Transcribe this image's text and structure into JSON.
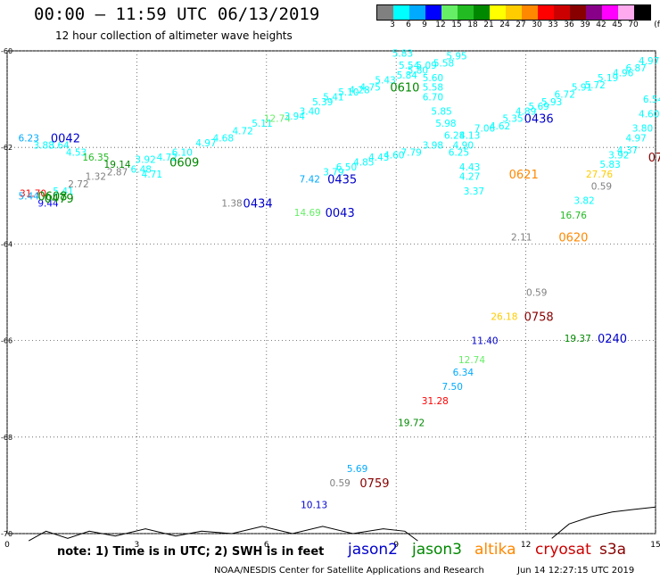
{
  "header": {
    "title": "00:00 – 11:59 UTC 06/13/2019",
    "subtitle": "12 hour collection of altimeter wave heights"
  },
  "scale": {
    "unit": "(ft)",
    "stops": [
      {
        "label": "3",
        "color": "#808080"
      },
      {
        "label": "6",
        "color": "#00ffff"
      },
      {
        "label": "9",
        "color": "#00aaff"
      },
      {
        "label": "12",
        "color": "#0000ff"
      },
      {
        "label": "15",
        "color": "#66ee66"
      },
      {
        "label": "18",
        "color": "#22bb22"
      },
      {
        "label": "21",
        "color": "#008800"
      },
      {
        "label": "24",
        "color": "#ffff00"
      },
      {
        "label": "27",
        "color": "#ffcc00"
      },
      {
        "label": "30",
        "color": "#ff8800"
      },
      {
        "label": "33",
        "color": "#ff0000"
      },
      {
        "label": "36",
        "color": "#cc0000"
      },
      {
        "label": "39",
        "color": "#880000"
      },
      {
        "label": "42",
        "color": "#880088"
      },
      {
        "label": "45",
        "color": "#ff00ff"
      },
      {
        "label": "70",
        "color": "#ffaaee"
      },
      {
        "label": "",
        "color": "#000000"
      }
    ]
  },
  "footer": {
    "note": "note: 1) Time is in UTC; 2) SWH is in feet",
    "credit": "NOAA/NESDIS Center for Satellite Applications and Research",
    "generated": "Jun 14 12:27:15 UTC 2019"
  },
  "legend": [
    {
      "label": "jason2",
      "color": "#0000cc"
    },
    {
      "label": "jason3",
      "color": "#008800"
    },
    {
      "label": "altika",
      "color": "#ff8800"
    },
    {
      "label": "cryosat",
      "color": "#cc0000"
    },
    {
      "label": "s3a",
      "color": "#880000"
    }
  ],
  "chart_data": {
    "type": "scatter",
    "title": "00:00 – 11:59 UTC 06/13/2019",
    "subtitle": "12 hour collection of altimeter wave heights",
    "xlabel": "",
    "ylabel": "",
    "xlim": [
      0,
      15
    ],
    "ylim": [
      -70,
      -60
    ],
    "x_ticks": [
      "0",
      "3",
      "6",
      "9",
      "12",
      "15"
    ],
    "x_tick_values": [
      0,
      3,
      6,
      9,
      12,
      15
    ],
    "y_ticks": [
      "-60",
      "-62",
      "-64",
      "-66",
      "-68",
      "-70"
    ],
    "y_tick_values": [
      -60,
      -62,
      -64,
      -66,
      -68,
      -70
    ],
    "grid": true,
    "points": [
      {
        "x": 0.5,
        "y": -61.8,
        "text": "6.23",
        "color": "#00aaff"
      },
      {
        "x": 0.85,
        "y": -61.95,
        "text": "3.88",
        "color": "#00ffff"
      },
      {
        "x": 1.2,
        "y": -61.95,
        "text": "3.64",
        "color": "#00ffff"
      },
      {
        "x": 1.6,
        "y": -62.1,
        "text": "4.53",
        "color": "#00ffff"
      },
      {
        "x": 2.05,
        "y": -62.2,
        "text": "16.35",
        "color": "#22bb22"
      },
      {
        "x": 2.55,
        "y": -62.35,
        "text": "19.14",
        "color": "#008800"
      },
      {
        "x": 3.1,
        "y": -62.45,
        "text": "6.48",
        "color": "#00ffff"
      },
      {
        "x": 3.35,
        "y": -62.55,
        "text": "4.71",
        "color": "#00ffff"
      },
      {
        "x": 3.2,
        "y": -62.25,
        "text": "3.92",
        "color": "#00ffff"
      },
      {
        "x": 3.7,
        "y": -62.2,
        "text": "4.72",
        "color": "#00ffff"
      },
      {
        "x": 4.05,
        "y": -62.1,
        "text": "6.10",
        "color": "#00ffff"
      },
      {
        "x": 4.6,
        "y": -61.9,
        "text": "4.97",
        "color": "#00ffff"
      },
      {
        "x": 5.0,
        "y": -61.8,
        "text": "4.68",
        "color": "#00ffff"
      },
      {
        "x": 5.45,
        "y": -61.65,
        "text": "4.72",
        "color": "#00ffff"
      },
      {
        "x": 5.9,
        "y": -61.5,
        "text": "5.11",
        "color": "#00ffff"
      },
      {
        "x": 6.25,
        "y": -61.4,
        "text": "12.74",
        "color": "#66ee66"
      },
      {
        "x": 6.65,
        "y": -61.35,
        "text": "3.94",
        "color": "#00ffff"
      },
      {
        "x": 7.0,
        "y": -61.25,
        "text": "3.40",
        "color": "#00ffff"
      },
      {
        "x": 7.3,
        "y": -61.05,
        "text": "5.39",
        "color": "#00ffff"
      },
      {
        "x": 7.55,
        "y": -60.95,
        "text": "5.41",
        "color": "#00ffff"
      },
      {
        "x": 7.9,
        "y": -60.85,
        "text": "5.10",
        "color": "#00ffff"
      },
      {
        "x": 8.15,
        "y": -60.8,
        "text": "4.28",
        "color": "#00ffff"
      },
      {
        "x": 8.4,
        "y": -60.75,
        "text": "4.75",
        "color": "#00ffff"
      },
      {
        "x": 8.75,
        "y": -60.6,
        "text": "5.43",
        "color": "#00ffff"
      },
      {
        "x": 9.15,
        "y": -60.05,
        "text": "5.83",
        "color": "#00ffff"
      },
      {
        "x": 9.3,
        "y": -60.3,
        "text": "5.54",
        "color": "#00ffff"
      },
      {
        "x": 9.25,
        "y": -60.5,
        "text": "5.84",
        "color": "#00ffff"
      },
      {
        "x": 9.5,
        "y": -60.4,
        "text": "5.80",
        "color": "#00ffff"
      },
      {
        "x": 9.7,
        "y": -60.3,
        "text": "5.09",
        "color": "#00ffff"
      },
      {
        "x": 9.85,
        "y": -60.55,
        "text": "5.60",
        "color": "#00ffff"
      },
      {
        "x": 10.1,
        "y": -60.25,
        "text": "5.58",
        "color": "#00ffff"
      },
      {
        "x": 10.4,
        "y": -60.1,
        "text": "5.95",
        "color": "#00ffff"
      },
      {
        "x": 9.85,
        "y": -60.75,
        "text": "5.58",
        "color": "#00ffff"
      },
      {
        "x": 9.85,
        "y": -60.95,
        "text": "6.70",
        "color": "#00ffff"
      },
      {
        "x": 10.05,
        "y": -61.25,
        "text": "5.85",
        "color": "#00ffff"
      },
      {
        "x": 10.15,
        "y": -61.5,
        "text": "5.98",
        "color": "#00ffff"
      },
      {
        "x": 10.35,
        "y": -61.75,
        "text": "6.28",
        "color": "#00ffff"
      },
      {
        "x": 10.55,
        "y": -61.95,
        "text": "4.90",
        "color": "#00ffff"
      },
      {
        "x": 10.7,
        "y": -61.75,
        "text": "4.13",
        "color": "#00ffff"
      },
      {
        "x": 11.05,
        "y": -61.6,
        "text": "7.06",
        "color": "#00ffff"
      },
      {
        "x": 11.4,
        "y": -61.55,
        "text": "4.62",
        "color": "#00ffff"
      },
      {
        "x": 11.7,
        "y": -61.4,
        "text": "5.35",
        "color": "#00ffff"
      },
      {
        "x": 12.0,
        "y": -61.25,
        "text": "4.89",
        "color": "#00ffff"
      },
      {
        "x": 12.3,
        "y": -61.15,
        "text": "5.69",
        "color": "#00ffff"
      },
      {
        "x": 12.6,
        "y": -61.05,
        "text": "5.93",
        "color": "#00ffff"
      },
      {
        "x": 12.9,
        "y": -60.9,
        "text": "6.72",
        "color": "#00ffff"
      },
      {
        "x": 13.3,
        "y": -60.75,
        "text": "5.91",
        "color": "#00ffff"
      },
      {
        "x": 13.6,
        "y": -60.7,
        "text": "5.72",
        "color": "#00ffff"
      },
      {
        "x": 13.9,
        "y": -60.55,
        "text": "5.19",
        "color": "#00ffff"
      },
      {
        "x": 14.25,
        "y": -60.45,
        "text": "4.96",
        "color": "#00ffff"
      },
      {
        "x": 14.55,
        "y": -60.35,
        "text": "6.87",
        "color": "#00ffff"
      },
      {
        "x": 14.85,
        "y": -60.2,
        "text": "4.97",
        "color": "#00ffff"
      },
      {
        "x": 10.45,
        "y": -62.1,
        "text": "6.25",
        "color": "#00ffff"
      },
      {
        "x": 10.7,
        "y": -62.4,
        "text": "4.43",
        "color": "#00ffff"
      },
      {
        "x": 10.7,
        "y": -62.6,
        "text": "4.27",
        "color": "#00ffff"
      },
      {
        "x": 10.8,
        "y": -62.9,
        "text": "3.37",
        "color": "#00ffff"
      },
      {
        "x": 9.85,
        "y": -61.95,
        "text": "3.98",
        "color": "#00ffff"
      },
      {
        "x": 9.35,
        "y": -62.1,
        "text": "7.79",
        "color": "#00ffff"
      },
      {
        "x": 8.95,
        "y": -62.15,
        "text": "4.60",
        "color": "#00ffff"
      },
      {
        "x": 8.6,
        "y": -62.2,
        "text": "4.43",
        "color": "#00ffff"
      },
      {
        "x": 8.25,
        "y": -62.3,
        "text": "4.85",
        "color": "#00ffff"
      },
      {
        "x": 7.85,
        "y": -62.4,
        "text": "6.50",
        "color": "#00ffff"
      },
      {
        "x": 7.55,
        "y": -62.5,
        "text": "3.79",
        "color": "#00ffff"
      },
      {
        "x": 7.0,
        "y": -62.65,
        "text": "7.42",
        "color": "#00aaff"
      },
      {
        "x": 14.95,
        "y": -61.0,
        "text": "6.54",
        "color": "#00ffff"
      },
      {
        "x": 14.85,
        "y": -61.3,
        "text": "4.60",
        "color": "#00ffff"
      },
      {
        "x": 14.7,
        "y": -61.6,
        "text": "3.80",
        "color": "#00ffff"
      },
      {
        "x": 14.55,
        "y": -61.8,
        "text": "4.97",
        "color": "#00ffff"
      },
      {
        "x": 14.35,
        "y": -62.05,
        "text": "4.37",
        "color": "#00ffff"
      },
      {
        "x": 14.15,
        "y": -62.15,
        "text": "3.92",
        "color": "#00ffff"
      },
      {
        "x": 13.95,
        "y": -62.35,
        "text": "5.83",
        "color": "#00ffff"
      },
      {
        "x": 13.7,
        "y": -62.55,
        "text": "27.76",
        "color": "#ffcc00"
      },
      {
        "x": 13.75,
        "y": -62.8,
        "text": "0.59",
        "color": "#808080"
      },
      {
        "x": 13.35,
        "y": -63.1,
        "text": "3.82",
        "color": "#00ffff"
      },
      {
        "x": 13.1,
        "y": -63.4,
        "text": "16.76",
        "color": "#22bb22"
      },
      {
        "x": 11.9,
        "y": -63.85,
        "text": "2.11",
        "color": "#808080"
      },
      {
        "x": 0.6,
        "y": -62.95,
        "text": "31.70",
        "color": "#ff0000"
      },
      {
        "x": 0.5,
        "y": -63.0,
        "text": "5.44",
        "color": "#00aaff"
      },
      {
        "x": 0.95,
        "y": -63.15,
        "text": "9.44",
        "color": "#0000ff"
      },
      {
        "x": 1.3,
        "y": -62.9,
        "text": "5.41",
        "color": "#00ffff"
      },
      {
        "x": 1.65,
        "y": -62.75,
        "text": "2.72",
        "color": "#808080"
      },
      {
        "x": 2.05,
        "y": -62.6,
        "text": "1.32",
        "color": "#808080"
      },
      {
        "x": 2.55,
        "y": -62.5,
        "text": "2.87",
        "color": "#808080"
      },
      {
        "x": 5.2,
        "y": -63.15,
        "text": "1.38",
        "color": "#808080"
      },
      {
        "x": 6.95,
        "y": -63.35,
        "text": "14.69",
        "color": "#66ee66"
      },
      {
        "x": 12.25,
        "y": -65.0,
        "text": "0.59",
        "color": "#808080"
      },
      {
        "x": 11.5,
        "y": -65.5,
        "text": "26.18",
        "color": "#ffcc00"
      },
      {
        "x": 11.05,
        "y": -66.0,
        "text": "11.40",
        "color": "#0000cc"
      },
      {
        "x": 13.2,
        "y": -65.95,
        "text": "19.37",
        "color": "#008800"
      },
      {
        "x": 10.75,
        "y": -66.4,
        "text": "12.74",
        "color": "#66ee66"
      },
      {
        "x": 10.55,
        "y": -66.65,
        "text": "6.34",
        "color": "#00aaff"
      },
      {
        "x": 10.3,
        "y": -66.95,
        "text": "7.50",
        "color": "#00aaff"
      },
      {
        "x": 9.9,
        "y": -67.25,
        "text": "31.28",
        "color": "#ff0000"
      },
      {
        "x": 9.35,
        "y": -67.7,
        "text": "19.72",
        "color": "#008800"
      },
      {
        "x": 8.1,
        "y": -68.65,
        "text": "5.69",
        "color": "#00aaff"
      },
      {
        "x": 7.7,
        "y": -68.95,
        "text": "0.59",
        "color": "#808080"
      },
      {
        "x": 7.1,
        "y": -69.4,
        "text": "10.13",
        "color": "#0000cc"
      }
    ],
    "pass_labels": [
      {
        "x": 1.35,
        "y": -61.8,
        "text": "0042",
        "satellite": "jason2",
        "color": "#0000cc"
      },
      {
        "x": 4.1,
        "y": -62.3,
        "text": "0609",
        "satellite": "jason3",
        "color": "#008800"
      },
      {
        "x": 1.05,
        "y": -63.0,
        "text": "0608",
        "satellite": "jason3",
        "color": "#008800"
      },
      {
        "x": 1.2,
        "y": -63.05,
        "text": "0479",
        "satellite": "jason3",
        "color": "#008800"
      },
      {
        "x": 5.8,
        "y": -63.15,
        "text": "0434",
        "satellite": "jason2",
        "color": "#0000cc"
      },
      {
        "x": 7.75,
        "y": -62.65,
        "text": "0435",
        "satellite": "jason2",
        "color": "#0000cc"
      },
      {
        "x": 7.7,
        "y": -63.35,
        "text": "0043",
        "satellite": "jason2",
        "color": "#0000cc"
      },
      {
        "x": 9.2,
        "y": -60.75,
        "text": "0610",
        "satellite": "jason3",
        "color": "#008800"
      },
      {
        "x": 12.3,
        "y": -61.4,
        "text": "0436",
        "satellite": "jason2",
        "color": "#0000cc"
      },
      {
        "x": 11.95,
        "y": -62.55,
        "text": "0621",
        "satellite": "altika",
        "color": "#ff8800"
      },
      {
        "x": 13.1,
        "y": -63.85,
        "text": "0620",
        "satellite": "altika",
        "color": "#ff8800"
      },
      {
        "x": 12.3,
        "y": -65.5,
        "text": "0758",
        "satellite": "s3a",
        "color": "#880000"
      },
      {
        "x": 14.0,
        "y": -65.95,
        "text": "0240",
        "satellite": "jason2",
        "color": "#0000cc"
      },
      {
        "x": 8.5,
        "y": -68.95,
        "text": "0759",
        "satellite": "s3a",
        "color": "#880000"
      },
      {
        "x": 15.0,
        "y": -62.2,
        "text": "07",
        "satellite": "s3a",
        "color": "#880000"
      }
    ],
    "coastline": [
      [
        0.5,
        -70.15
      ],
      [
        0.9,
        -69.95
      ],
      [
        1.4,
        -70.1
      ],
      [
        1.9,
        -69.95
      ],
      [
        2.5,
        -70.05
      ],
      [
        3.2,
        -69.9
      ],
      [
        3.9,
        -70.05
      ],
      [
        4.5,
        -69.95
      ],
      [
        5.2,
        -70.0
      ],
      [
        5.9,
        -69.85
      ],
      [
        6.6,
        -70.0
      ],
      [
        7.3,
        -69.85
      ],
      [
        8.0,
        -70.0
      ],
      [
        8.7,
        -69.9
      ],
      [
        9.2,
        -69.95
      ],
      [
        9.5,
        -70.15
      ]
    ],
    "coastline2": [
      [
        12.6,
        -70.1
      ],
      [
        13.0,
        -69.8
      ],
      [
        13.5,
        -69.65
      ],
      [
        14.0,
        -69.55
      ],
      [
        14.5,
        -69.5
      ],
      [
        15.0,
        -69.45
      ]
    ]
  }
}
